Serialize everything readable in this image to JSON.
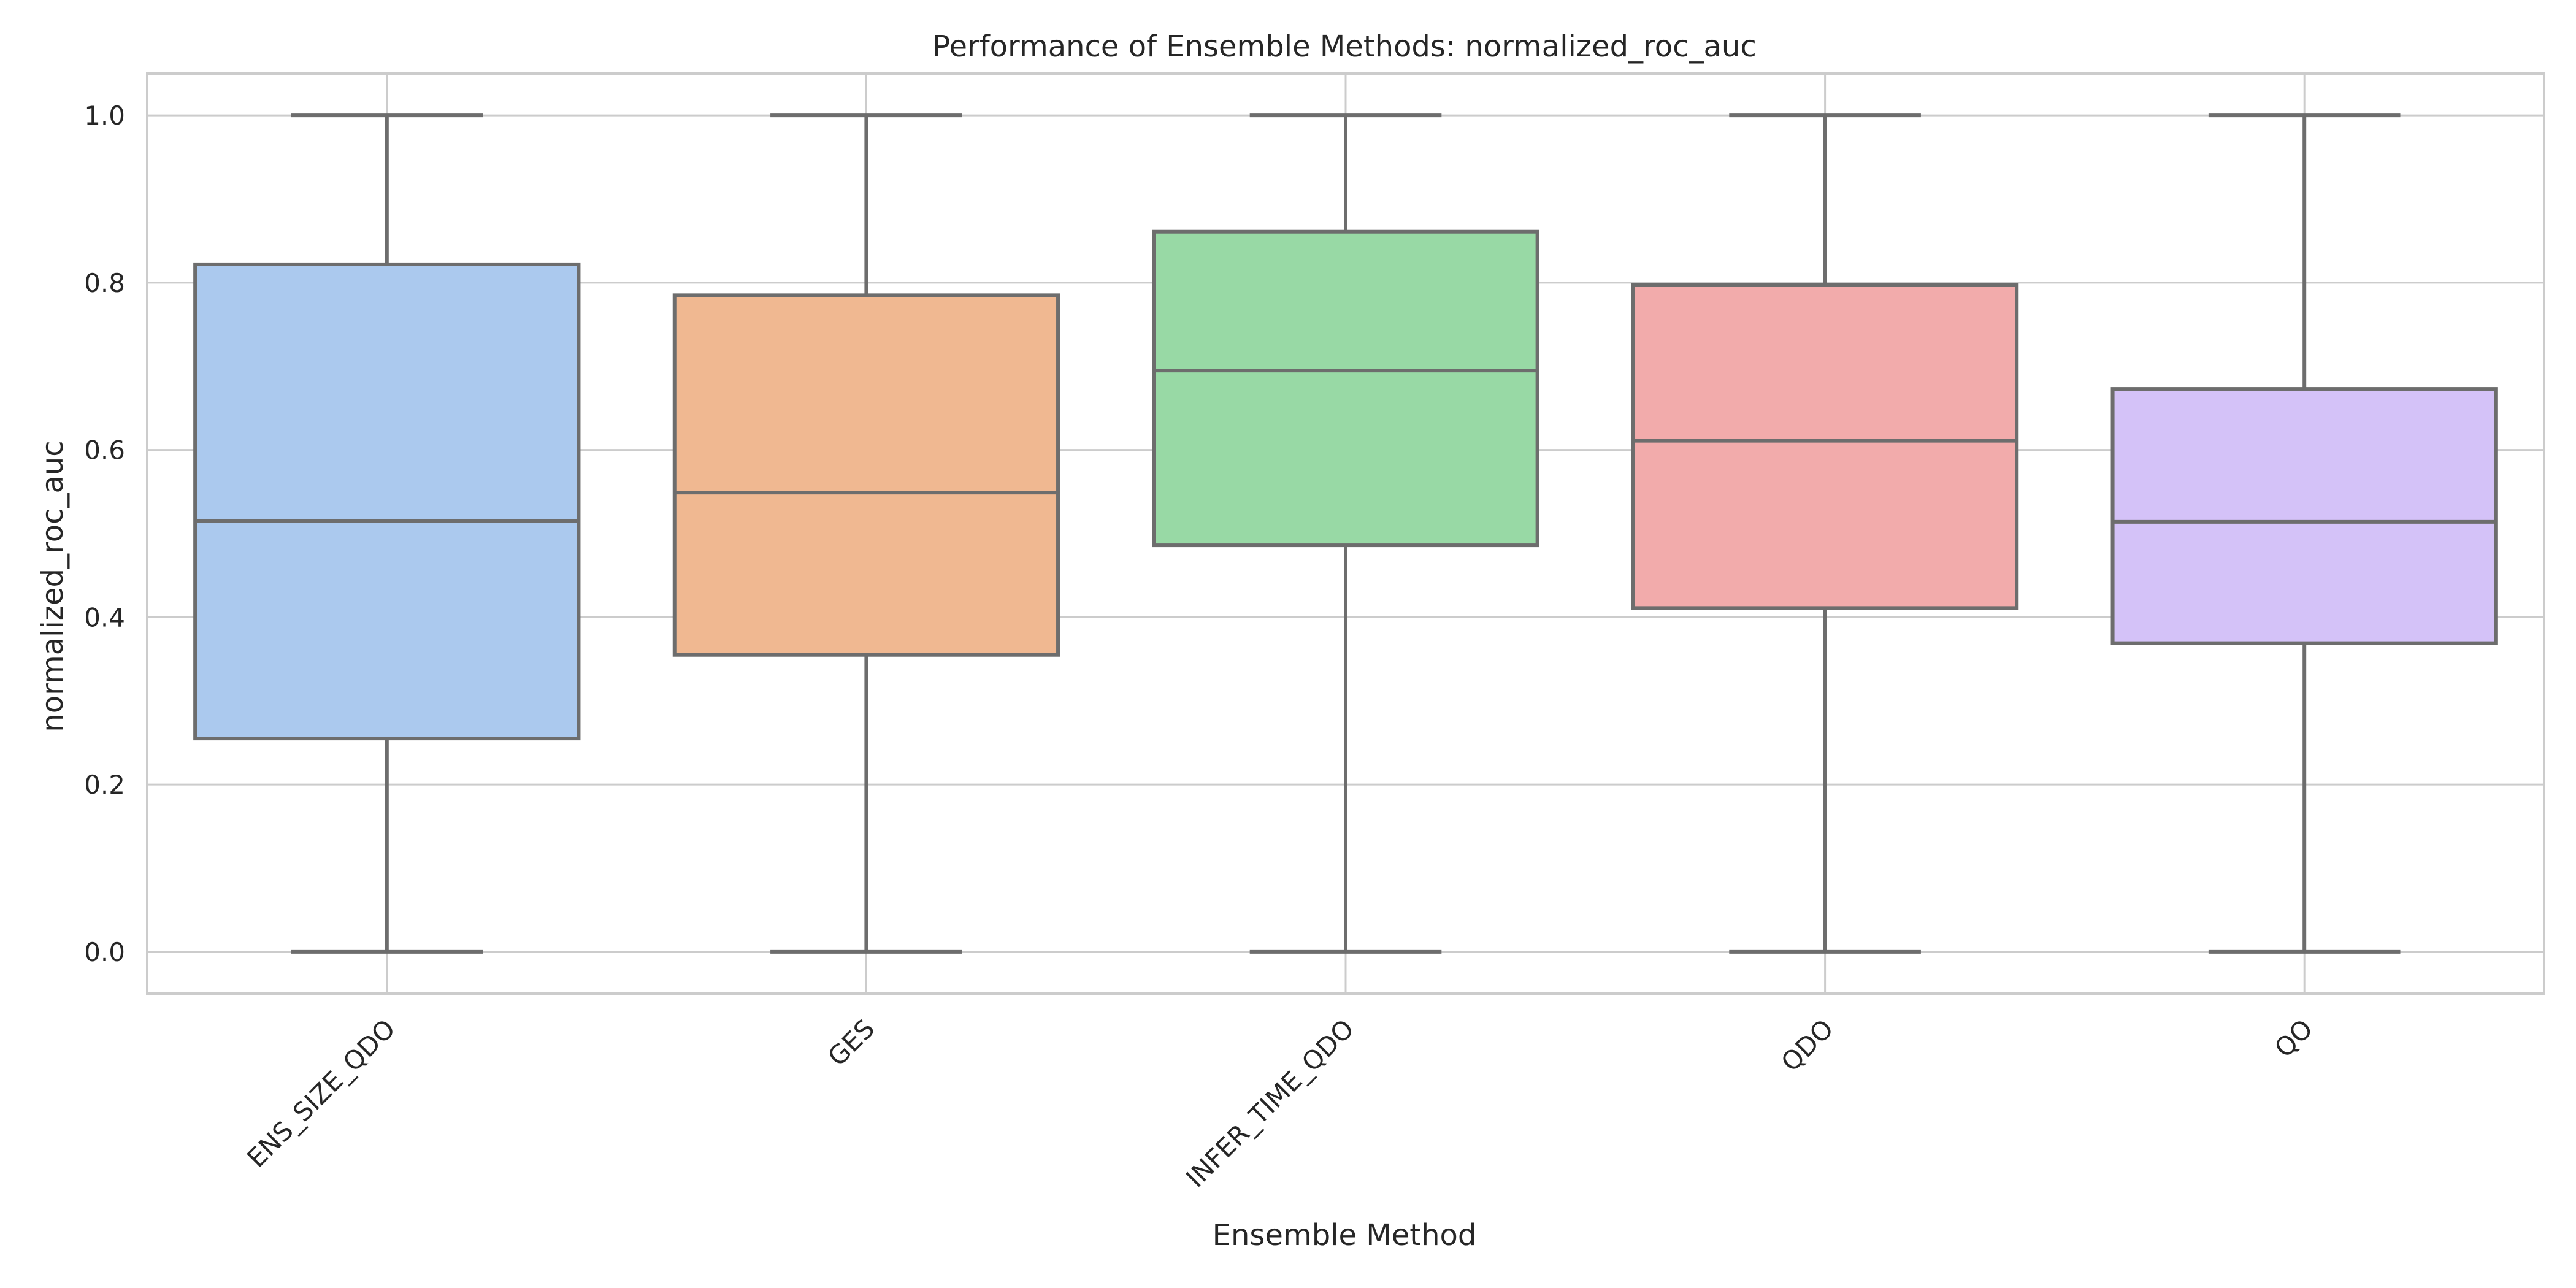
{
  "chart_data": {
    "type": "box",
    "title": "Performance of Ensemble Methods: normalized_roc_auc",
    "xlabel": "Ensemble Method",
    "ylabel": "normalized_roc_auc",
    "categories": [
      "ENS_SIZE_QDO",
      "GES",
      "INFER_TIME_QDO",
      "QDO",
      "QO"
    ],
    "ylim": [
      -0.05,
      1.05
    ],
    "yticks": [
      0.0,
      0.2,
      0.4,
      0.6,
      0.8,
      1.0
    ],
    "ytick_labels": [
      "0.0",
      "0.2",
      "0.4",
      "0.6",
      "0.8",
      "1.0"
    ],
    "grid": true,
    "xtick_rotation": -45,
    "boxes": [
      {
        "whisker_low": 0.0,
        "q1": 0.255,
        "median": 0.515,
        "q3": 0.822,
        "whisker_high": 1.0,
        "color": "#abc9ee"
      },
      {
        "whisker_low": 0.0,
        "q1": 0.355,
        "median": 0.549,
        "q3": 0.785,
        "whisker_high": 1.0,
        "color": "#f0b891"
      },
      {
        "whisker_low": 0.0,
        "q1": 0.486,
        "median": 0.695,
        "q3": 0.861,
        "whisker_high": 1.0,
        "color": "#98d9a5"
      },
      {
        "whisker_low": 0.0,
        "q1": 0.411,
        "median": 0.611,
        "q3": 0.797,
        "whisker_high": 1.0,
        "color": "#f2abab"
      },
      {
        "whisker_low": 0.0,
        "q1": 0.369,
        "median": 0.514,
        "q3": 0.673,
        "whisker_high": 1.0,
        "color": "#d4c2f8"
      }
    ],
    "line_color": "#6d6d6d",
    "grid_color": "#cccccc",
    "frame_color": "#cccccc"
  }
}
